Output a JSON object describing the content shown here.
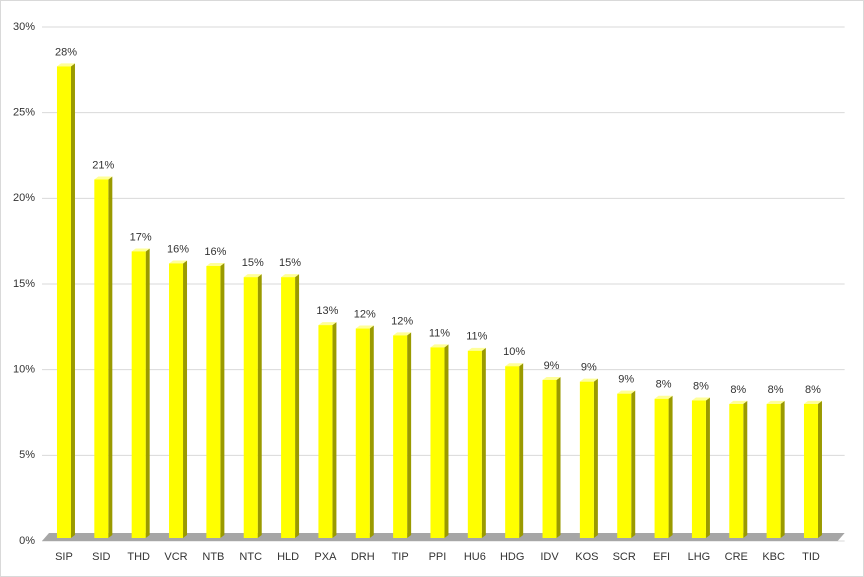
{
  "chart_data": {
    "type": "bar3d",
    "categories": [
      "SIP",
      "SID",
      "THD",
      "VCR",
      "NTB",
      "NTC",
      "HLD",
      "PXA",
      "DRH",
      "TIP",
      "PPI",
      "HU6",
      "HDG",
      "IDV",
      "KOS",
      "SCR",
      "EFI",
      "LHG",
      "CRE",
      "KBC",
      "TID"
    ],
    "values": [
      27.7,
      21.1,
      16.9,
      16.2,
      16.05,
      15.4,
      15.4,
      12.6,
      12.4,
      12.0,
      11.3,
      11.1,
      10.2,
      9.4,
      9.3,
      8.6,
      8.3,
      8.2,
      8.0,
      8.0,
      8.0
    ],
    "value_labels": [
      "28%",
      "21%",
      "17%",
      "16%",
      "16%",
      "15%",
      "15%",
      "13%",
      "12%",
      "12%",
      "11%",
      "11%",
      "10%",
      "9%",
      "9%",
      "9%",
      "8%",
      "8%",
      "8%",
      "8%",
      "8%"
    ],
    "color": "#ffff00",
    "ylim": [
      0,
      30
    ],
    "yticks": [
      {
        "value": 0,
        "label": "0%"
      },
      {
        "value": 5,
        "label": "5%"
      },
      {
        "value": 10,
        "label": "10%"
      },
      {
        "value": 15,
        "label": "15%"
      },
      {
        "value": 20,
        "label": "20%"
      },
      {
        "value": 25,
        "label": "25%"
      },
      {
        "value": 30,
        "label": "30%"
      }
    ],
    "grid": true
  }
}
